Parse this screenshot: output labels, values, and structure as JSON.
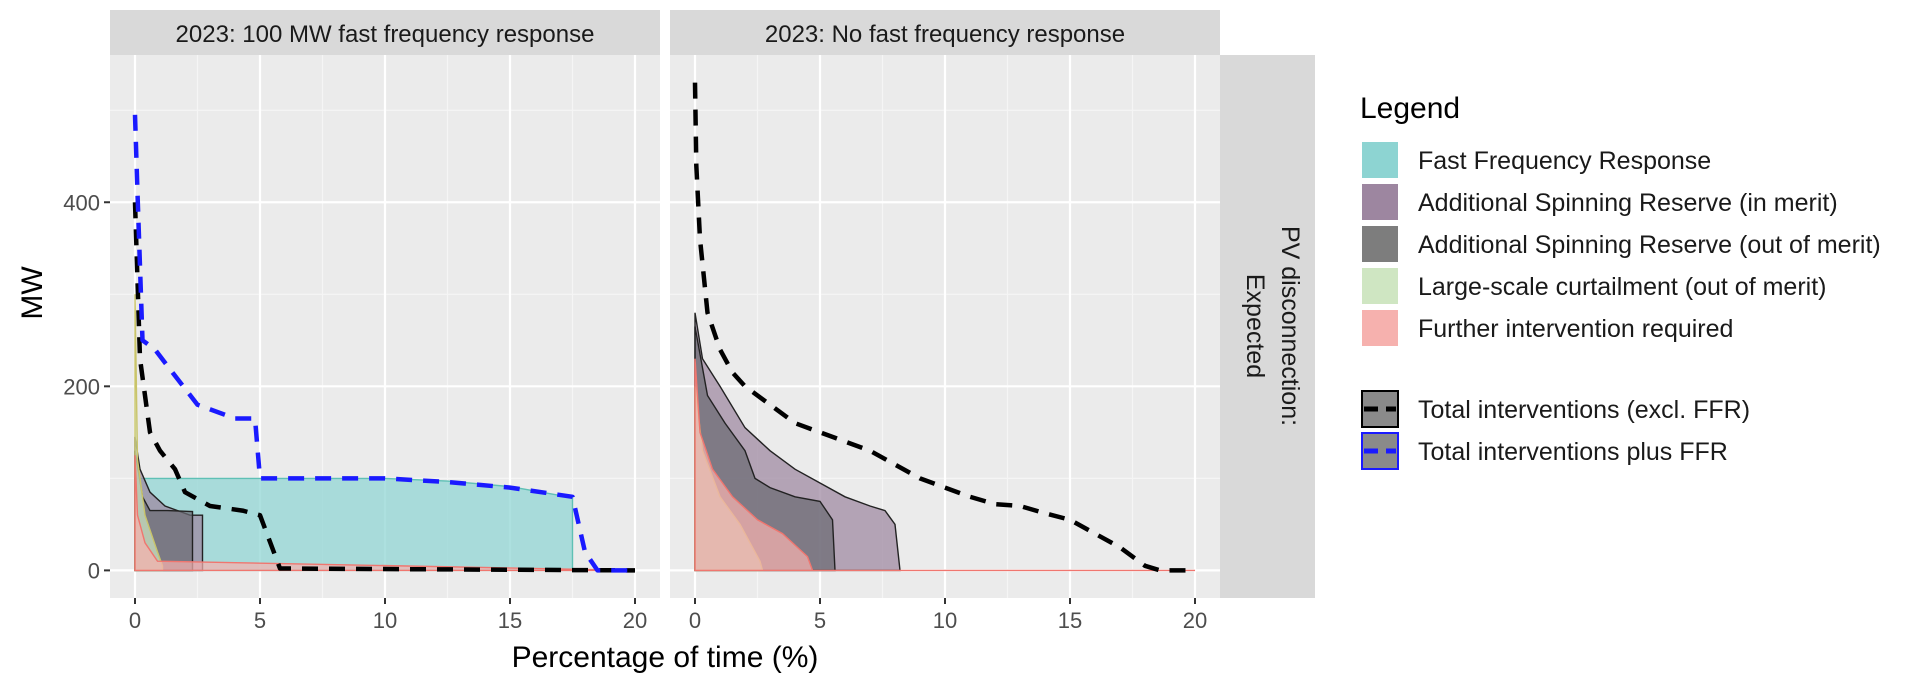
{
  "figure": {
    "ylabel": "MW",
    "xlabel": "Percentage of time (%)",
    "strip_right": [
      "PV disconnection:",
      "Expected"
    ],
    "legend": {
      "title": "Legend",
      "fill_entries": [
        {
          "label": "Fast Frequency Response",
          "color": "#8dd4d2"
        },
        {
          "label": "Additional Spinning Reserve (in merit)",
          "color": "#9d86a0"
        },
        {
          "label": "Additional Spinning Reserve (out of merit)",
          "color": "#7d7d7d"
        },
        {
          "label": "Large-scale curtailment (out of merit)",
          "color": "#cfe6c2"
        },
        {
          "label": "Further intervention required",
          "color": "#f6b1ae"
        }
      ],
      "line_entries": [
        {
          "label": "Total interventions (excl. FFR)",
          "color": "#000000"
        },
        {
          "label": "Total interventions plus FFR",
          "color": "#1a1aff"
        }
      ]
    }
  },
  "chart_data": [
    {
      "type": "area",
      "title": "2023: 100 MW fast frequency response",
      "xlabel": "Percentage of time (%)",
      "ylabel": "MW",
      "xlim": [
        -1,
        21
      ],
      "ylim": [
        -30,
        560
      ],
      "xticks": [
        0,
        5,
        10,
        15,
        20
      ],
      "yticks": [
        0,
        200,
        400
      ],
      "grid": true,
      "areas": [
        {
          "name": "Fast Frequency Response",
          "color": "#8dd4d2",
          "points": [
            [
              0,
              100
            ],
            [
              0.5,
              100
            ],
            [
              1,
              100
            ],
            [
              5,
              100
            ],
            [
              10,
              100
            ],
            [
              12.5,
              97
            ],
            [
              15,
              91
            ],
            [
              17.5,
              79
            ],
            [
              17.5,
              0
            ],
            [
              0,
              0
            ]
          ]
        },
        {
          "name": "Additional Spinning Reserve (in merit)",
          "color": "#9d86a0",
          "points": [
            [
              0,
              145
            ],
            [
              0.2,
              110
            ],
            [
              0.6,
              85
            ],
            [
              1.2,
              70
            ],
            [
              2.2,
              60
            ],
            [
              2.7,
              60
            ],
            [
              2.7,
              0
            ],
            [
              0,
              0
            ]
          ]
        },
        {
          "name": "Additional Spinning Reserve (out of merit)",
          "color": "#6b6b73",
          "points": [
            [
              0,
              130
            ],
            [
              0.3,
              80
            ],
            [
              0.6,
              65
            ],
            [
              1.3,
              65
            ],
            [
              2.3,
              64
            ],
            [
              2.3,
              0
            ],
            [
              0,
              0
            ]
          ]
        },
        {
          "name": "Large-scale curtailment (out of merit)",
          "color": "#cfe6c2",
          "points": [
            [
              0,
              300
            ],
            [
              0.1,
              120
            ],
            [
              0.4,
              60
            ],
            [
              0.9,
              20
            ],
            [
              1.1,
              5
            ],
            [
              1.1,
              0
            ],
            [
              0,
              0
            ]
          ]
        },
        {
          "name": "Further intervention required",
          "color": "#f6b1ae",
          "points": [
            [
              0,
              125
            ],
            [
              0.1,
              60
            ],
            [
              0.4,
              30
            ],
            [
              0.9,
              10
            ],
            [
              20,
              0
            ],
            [
              0,
              0
            ]
          ]
        }
      ],
      "series": [
        {
          "name": "Total interventions (excl. FFR)",
          "color": "#000000",
          "points": [
            [
              0,
              400
            ],
            [
              0.2,
              230
            ],
            [
              0.6,
              150
            ],
            [
              1,
              130
            ],
            [
              1.6,
              110
            ],
            [
              2,
              85
            ],
            [
              3,
              70
            ],
            [
              4.3,
              65
            ],
            [
              5,
              60
            ],
            [
              5.8,
              2
            ],
            [
              20,
              0
            ]
          ]
        },
        {
          "name": "Total interventions plus FFR",
          "color": "#1a1aff",
          "points": [
            [
              0,
              495
            ],
            [
              0.1,
              410
            ],
            [
              0.3,
              250
            ],
            [
              0.8,
              240
            ],
            [
              1.5,
              215
            ],
            [
              2.5,
              180
            ],
            [
              3.5,
              170
            ],
            [
              4,
              165
            ],
            [
              4.8,
              165
            ],
            [
              5,
              100
            ],
            [
              10,
              100
            ],
            [
              12.5,
              96
            ],
            [
              15,
              90
            ],
            [
              17.5,
              80
            ],
            [
              18,
              20
            ],
            [
              18.5,
              0
            ],
            [
              20,
              0
            ]
          ]
        }
      ]
    },
    {
      "type": "area",
      "title": "2023: No fast frequency response",
      "xlabel": "Percentage of time (%)",
      "ylabel": "MW",
      "xlim": [
        -1,
        21
      ],
      "ylim": [
        -30,
        560
      ],
      "xticks": [
        0,
        5,
        10,
        15,
        20
      ],
      "yticks": [
        0,
        200,
        400
      ],
      "grid": true,
      "areas": [
        {
          "name": "Additional Spinning Reserve (in merit)",
          "color": "#9d86a0",
          "points": [
            [
              0,
              280
            ],
            [
              0.3,
              230
            ],
            [
              1,
              200
            ],
            [
              2,
              155
            ],
            [
              3,
              130
            ],
            [
              4,
              110
            ],
            [
              5,
              95
            ],
            [
              6,
              80
            ],
            [
              7,
              70
            ],
            [
              7.6,
              65
            ],
            [
              8,
              50
            ],
            [
              8.2,
              0
            ],
            [
              0,
              0
            ]
          ]
        },
        {
          "name": "Additional Spinning Reserve (out of merit)",
          "color": "#6b6b73",
          "points": [
            [
              0,
              265
            ],
            [
              0.5,
              190
            ],
            [
              1.2,
              160
            ],
            [
              2,
              130
            ],
            [
              2.4,
              100
            ],
            [
              3,
              90
            ],
            [
              4,
              80
            ],
            [
              5,
              75
            ],
            [
              5.5,
              55
            ],
            [
              5.6,
              0
            ],
            [
              0,
              0
            ]
          ]
        },
        {
          "name": "Large-scale curtailment (out of merit)",
          "color": "#cfe6c2",
          "points": [
            [
              0,
              200
            ],
            [
              0.3,
              130
            ],
            [
              1,
              80
            ],
            [
              1.8,
              50
            ],
            [
              2.6,
              10
            ],
            [
              2.7,
              0
            ],
            [
              0,
              0
            ]
          ]
        },
        {
          "name": "Further intervention required",
          "color": "#f6b1ae",
          "points": [
            [
              0,
              230
            ],
            [
              0.2,
              150
            ],
            [
              0.7,
              110
            ],
            [
              1.5,
              80
            ],
            [
              2.5,
              55
            ],
            [
              3.5,
              40
            ],
            [
              4.5,
              15
            ],
            [
              4.7,
              0
            ],
            [
              20,
              0
            ],
            [
              0,
              0
            ]
          ]
        }
      ],
      "series": [
        {
          "name": "Total interventions (excl. FFR)",
          "color": "#000000",
          "points": [
            [
              0,
              530
            ],
            [
              0.05,
              440
            ],
            [
              0.2,
              360
            ],
            [
              0.5,
              280
            ],
            [
              1,
              240
            ],
            [
              1.5,
              215
            ],
            [
              2,
              200
            ],
            [
              3,
              180
            ],
            [
              4,
              160
            ],
            [
              5,
              150
            ],
            [
              6,
              140
            ],
            [
              7,
              130
            ],
            [
              8,
              115
            ],
            [
              9,
              100
            ],
            [
              10,
              90
            ],
            [
              11,
              80
            ],
            [
              12,
              72
            ],
            [
              13,
              70
            ],
            [
              14,
              62
            ],
            [
              15,
              55
            ],
            [
              16,
              40
            ],
            [
              17,
              25
            ],
            [
              18,
              5
            ],
            [
              18.6,
              0
            ],
            [
              20,
              0
            ]
          ]
        }
      ]
    }
  ]
}
